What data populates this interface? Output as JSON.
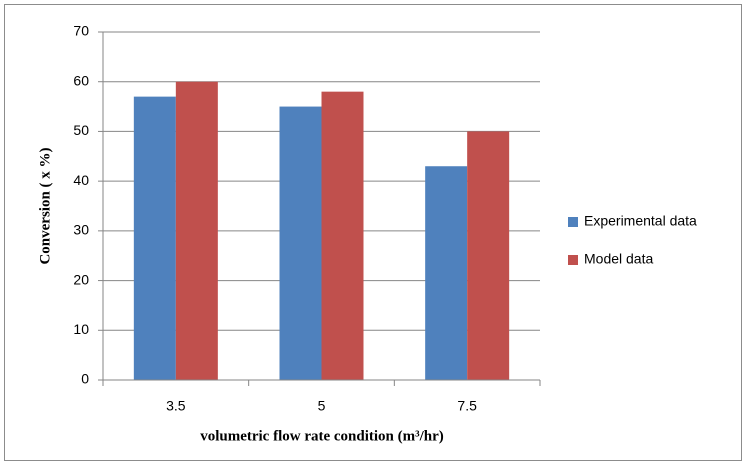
{
  "chart_data": {
    "type": "bar",
    "x_label": "volumetric flow rate condition (m³/hr)",
    "y_label": "Conversion ( x %)",
    "categories": [
      "3.5",
      "5",
      "7.5"
    ],
    "series": [
      {
        "name": "Experimental data",
        "color": "#4f81bd",
        "values": [
          57,
          55,
          43
        ]
      },
      {
        "name": "Model data",
        "color": "#c0504d",
        "values": [
          60,
          58,
          50
        ]
      }
    ],
    "ylim": [
      0,
      70
    ],
    "yticks": [
      0,
      10,
      20,
      30,
      40,
      50,
      60,
      70
    ],
    "grid": true,
    "legend": "right"
  }
}
